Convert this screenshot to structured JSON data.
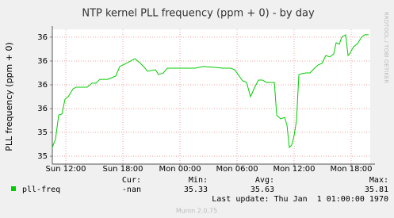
{
  "chart_data": {
    "type": "line",
    "title": "NTP kernel PLL frequency (ppm + 0) - by day",
    "y_label": "PLL frequency (ppm + 0)",
    "watermark": "RRDTOOL / TOBI OETIKER",
    "x": [
      10.58,
      10.92,
      11.25,
      11.58,
      11.92,
      12.25,
      12.75,
      13.08,
      13.83,
      14.25,
      14.75,
      15.17,
      15.58,
      16.42,
      17.25,
      17.67,
      18.5,
      19.25,
      19.75,
      20.17,
      20.58,
      21.42,
      21.75,
      22.25,
      22.67,
      24.33,
      25.58,
      26.42,
      27.67,
      28.5,
      29.33,
      29.75,
      30.17,
      30.58,
      31,
      31.42,
      31.83,
      32.25,
      32.67,
      33.08,
      33.92,
      34.17,
      34.58,
      35,
      35.25,
      35.5,
      35.75,
      36,
      36.25,
      36.5,
      36.83,
      37.25,
      37.67,
      38.08,
      38.5,
      38.92,
      39.33,
      39.75,
      40.17,
      40.42,
      40.75,
      41,
      41.42,
      41.67,
      41.83,
      42.25,
      42.67,
      43.08,
      43.42,
      43.83
    ],
    "series": [
      {
        "name": "pll-freq",
        "color": "#00cc00",
        "values": [
          35.337,
          35.373,
          35.473,
          35.477,
          35.54,
          35.55,
          35.583,
          35.59,
          35.59,
          35.59,
          35.607,
          35.607,
          35.623,
          35.623,
          35.637,
          35.677,
          35.693,
          35.71,
          35.693,
          35.677,
          35.657,
          35.663,
          35.643,
          35.65,
          35.67,
          35.67,
          35.67,
          35.677,
          35.673,
          35.67,
          35.67,
          35.663,
          35.64,
          35.617,
          35.61,
          35.55,
          35.587,
          35.62,
          35.62,
          35.61,
          35.61,
          35.473,
          35.457,
          35.463,
          35.43,
          35.337,
          35.347,
          35.387,
          35.45,
          35.643,
          35.647,
          35.65,
          35.65,
          35.667,
          35.683,
          35.69,
          35.723,
          35.717,
          35.73,
          35.777,
          35.77,
          35.8,
          35.81,
          35.723,
          35.73,
          35.76,
          35.773,
          35.8,
          35.81,
          35.81
        ]
      }
    ],
    "xlim": [
      10.58,
      44
    ],
    "xticks": [
      {
        "value": 12,
        "label": "Sun 12:00"
      },
      {
        "value": 18,
        "label": "Sun 18:00"
      },
      {
        "value": 24,
        "label": "Mon 00:00"
      },
      {
        "value": 30,
        "label": "Mon 06:00"
      },
      {
        "value": 36,
        "label": "Mon 12:00"
      },
      {
        "value": 42,
        "label": "Mon 18:00"
      }
    ],
    "ylim": [
      35.267,
      35.833
    ],
    "yticks": [
      {
        "value": 35.3,
        "label": "35"
      },
      {
        "value": 35.4,
        "label": "35"
      },
      {
        "value": 35.5,
        "label": "36"
      },
      {
        "value": 35.6,
        "label": "36"
      },
      {
        "value": 35.7,
        "label": "36"
      },
      {
        "value": 35.8,
        "label": "36"
      }
    ],
    "grid": true,
    "stats": {
      "cur_label": "Cur:",
      "cur": "-nan",
      "min_label": "Min:",
      "min": 35.33,
      "avg_label": "Avg:",
      "avg": 35.63,
      "max_label": "Max:",
      "max": 35.81
    },
    "last_update": "Last update: Thu Jan  1 01:00:00 1970",
    "footer": "Munin 2.0.75"
  }
}
